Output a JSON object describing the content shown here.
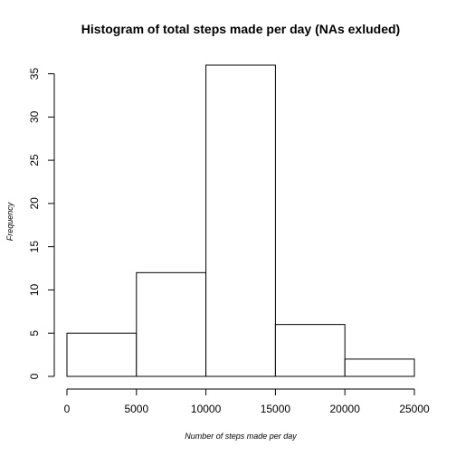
{
  "chart_data": {
    "type": "bar",
    "title": "Histogram of total steps made per day (NAs exluded)",
    "xlabel": "Number of steps made per day",
    "ylabel": "Frequency",
    "bins": [
      {
        "start": 0,
        "end": 5000,
        "count": 5
      },
      {
        "start": 5000,
        "end": 10000,
        "count": 12
      },
      {
        "start": 10000,
        "end": 15000,
        "count": 36
      },
      {
        "start": 15000,
        "end": 20000,
        "count": 6
      },
      {
        "start": 20000,
        "end": 25000,
        "count": 2
      }
    ],
    "xlim": [
      0,
      25000
    ],
    "ylim": [
      0,
      36
    ],
    "xticks": [
      0,
      5000,
      10000,
      15000,
      20000,
      25000
    ],
    "yticks": [
      0,
      5,
      10,
      15,
      20,
      25,
      30,
      35
    ],
    "grid": false,
    "bar_fill": "#ffffff",
    "bar_stroke": "#000000"
  }
}
